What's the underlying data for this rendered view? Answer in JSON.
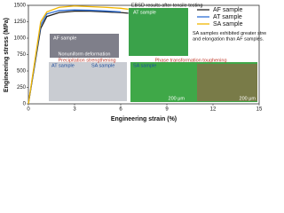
{
  "chart_data": {
    "type": "line",
    "x_label": "Engineering strain (%)",
    "y_label": "Engineering stress (MPa)",
    "x": [
      0,
      0.8,
      1.2,
      2,
      3,
      4,
      5,
      6,
      6.5
    ],
    "series": [
      {
        "name": "AF sample",
        "color": "#222222",
        "values": [
          0,
          1150,
          1330,
          1390,
          1410,
          1410,
          1400,
          1390,
          1380
        ]
      },
      {
        "name": "AT sample",
        "color": "#2f6fd6",
        "values": [
          0,
          1200,
          1370,
          1420,
          1430,
          1425,
          1415,
          1400,
          null
        ]
      },
      {
        "name": "SA sample",
        "color": "#f2b600",
        "values": [
          0,
          1250,
          1400,
          1470,
          1490,
          1480,
          1470,
          1455,
          1440
        ]
      }
    ],
    "xlim": [
      0,
      15
    ],
    "xticks": [
      0,
      3,
      6,
      9,
      12,
      15
    ],
    "ylim": [
      0,
      1500
    ],
    "yticks": [
      0,
      250,
      500,
      750,
      1000,
      1250,
      1500
    ],
    "annotations": [
      "EBSD results after tensile testing",
      "SA samples exhibited greater strength and elongation than AF samples.",
      "AF sample",
      "Nonuniform deformation",
      "AT sample",
      "AT sample",
      "SA sample",
      "Precipitation strengthening",
      "Phase transformation toughening",
      "SA sample",
      "200 μm",
      "200 μm"
    ]
  }
}
